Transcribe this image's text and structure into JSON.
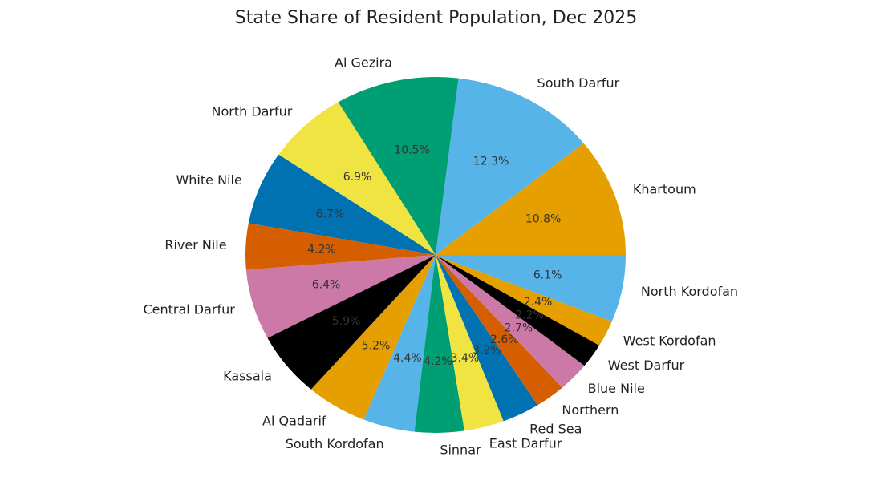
{
  "chart_data": {
    "type": "pie",
    "title": "State Share of Resident Population, Dec 2025",
    "start_angle_deg": 0,
    "direction": "counterclockwise",
    "slices": [
      {
        "label": "Khartoum",
        "value": 10.8,
        "pct": "10.8%",
        "color": "#E69F00"
      },
      {
        "label": "South Darfur",
        "value": 12.3,
        "pct": "12.3%",
        "color": "#56B4E9"
      },
      {
        "label": "Al Gezira",
        "value": 10.5,
        "pct": "10.5%",
        "color": "#009E73"
      },
      {
        "label": "North Darfur",
        "value": 6.9,
        "pct": "6.9%",
        "color": "#F0E442"
      },
      {
        "label": "White Nile",
        "value": 6.7,
        "pct": "6.7%",
        "color": "#0072B2"
      },
      {
        "label": "River Nile",
        "value": 4.2,
        "pct": "4.2%",
        "color": "#D55E00"
      },
      {
        "label": "Central Darfur",
        "value": 6.4,
        "pct": "6.4%",
        "color": "#CC79A7"
      },
      {
        "label": "Kassala",
        "value": 5.9,
        "pct": "5.9%",
        "color": "#000000"
      },
      {
        "label": "Al Qadarif",
        "value": 5.2,
        "pct": "5.2%",
        "color": "#E69F00"
      },
      {
        "label": "South Kordofan",
        "value": 4.4,
        "pct": "4.4%",
        "color": "#56B4E9"
      },
      {
        "label": "Sinnar",
        "value": 4.2,
        "pct": "4.2%",
        "color": "#009E73"
      },
      {
        "label": "East Darfur",
        "value": 3.4,
        "pct": "3.4%",
        "color": "#F0E442"
      },
      {
        "label": "Red Sea",
        "value": 3.2,
        "pct": "3.2%",
        "color": "#0072B2"
      },
      {
        "label": "Northern",
        "value": 2.6,
        "pct": "2.6%",
        "color": "#D55E00"
      },
      {
        "label": "Blue Nile",
        "value": 2.7,
        "pct": "2.7%",
        "color": "#CC79A7"
      },
      {
        "label": "West Darfur",
        "value": 2.2,
        "pct": "2.2%",
        "color": "#000000"
      },
      {
        "label": "West Kordofan",
        "value": 2.4,
        "pct": "2.4%",
        "color": "#E69F00"
      },
      {
        "label": "North Kordofan",
        "value": 6.1,
        "pct": "6.1%",
        "color": "#56B4E9"
      }
    ]
  }
}
